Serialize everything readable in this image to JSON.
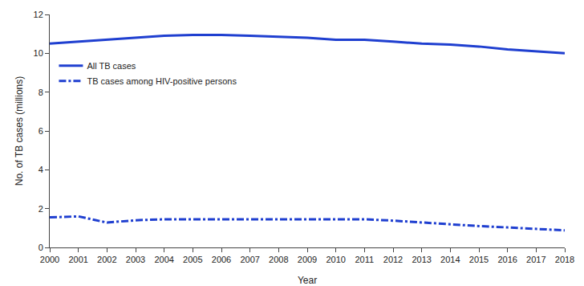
{
  "chart_data": {
    "type": "line",
    "x_label": "Year",
    "y_label": "No. of TB cases (millions)",
    "x": [
      2000,
      2001,
      2002,
      2003,
      2004,
      2005,
      2006,
      2007,
      2008,
      2009,
      2010,
      2011,
      2012,
      2013,
      2014,
      2015,
      2016,
      2017,
      2018
    ],
    "series": [
      {
        "name": "All TB cases",
        "color": "#1f3fd0",
        "line_style": "solid",
        "values": [
          10.5,
          10.6,
          10.7,
          10.8,
          10.9,
          10.95,
          10.95,
          10.9,
          10.85,
          10.8,
          10.7,
          10.7,
          10.6,
          10.5,
          10.45,
          10.35,
          10.2,
          10.1,
          10.0
        ]
      },
      {
        "name": "TB cases among HIV-positive persons",
        "color": "#1f3fd0",
        "line_style": "dashdot",
        "values": [
          1.55,
          1.6,
          1.28,
          1.4,
          1.45,
          1.45,
          1.45,
          1.45,
          1.45,
          1.48,
          1.45,
          1.45,
          1.38,
          1.28,
          1.2,
          1.1,
          1.03,
          0.95,
          0.88
        ]
      }
    ],
    "xlim": [
      2000,
      2018
    ],
    "xticks": [
      2000,
      2001,
      2002,
      2003,
      2004,
      2005,
      2006,
      2007,
      2008,
      2009,
      2010,
      2011,
      2012,
      2013,
      2014,
      2015,
      2016,
      2017,
      2018
    ],
    "ylim": [
      0,
      12
    ],
    "yticks": [
      0,
      2,
      4,
      6,
      8,
      10,
      12
    ],
    "grid": false,
    "legend": "upper left"
  }
}
